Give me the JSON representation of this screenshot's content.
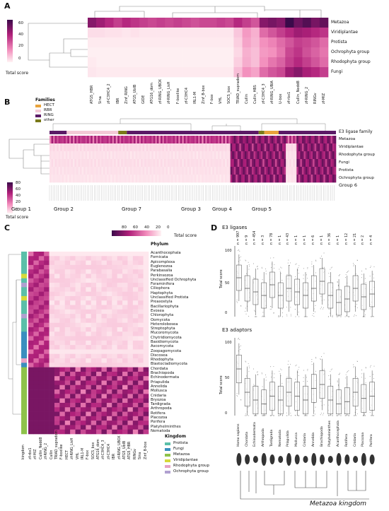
{
  "panels": {
    "a": {
      "letter": "A",
      "colorbar_ticks": [
        "60",
        "40",
        "20",
        "0"
      ],
      "colorbar_label": "Total score",
      "rows": [
        "Metazoa",
        "Viridiplantae",
        "Protista",
        "Ochrophyta group",
        "Rhodophyta group",
        "Fungi"
      ],
      "columns": [
        "ATG5_HBR",
        "Sina",
        "zf-C3HC4_2",
        "IBR",
        "Zinf_RING",
        "ATG5_UbIB",
        "GIDE",
        "ATG16_dom",
        "zf-RING_UBOX",
        "zf-RING_LisH",
        "F-boxlike",
        "zf-C3HC4",
        "IRL1-M",
        "Zinf_B-box",
        "F-box",
        "VHL",
        "SOCS_box",
        "TRIAD_supradom",
        "Cullin",
        "Cullin_HBS",
        "zf-C3HC4_3",
        "zf-RING_UBIA",
        "U-box",
        "zf-rbx1",
        "Cullin_Nedd8",
        "zf-RING_2",
        "RINGv",
        "zf-MIZ"
      ]
    },
    "b": {
      "letter": "B",
      "legend_title": "Families",
      "families": [
        {
          "name": "HECT",
          "color": "#e8a33d"
        },
        {
          "name": "RBR",
          "color": "#f3c9d6"
        },
        {
          "name": "RING",
          "color": "#5b1a66"
        },
        {
          "name": "other",
          "color": "#7a7a1a"
        }
      ],
      "colorbar_ticks": [
        "80",
        "60",
        "40",
        "20",
        "0"
      ],
      "colorbar_label": "Total score",
      "bar_label": "E3 ligase family",
      "rows": [
        "Metazoa",
        "Viridiplantae",
        "Rhodophyta group",
        "Fungi",
        "Protista",
        "Ochrophyta group"
      ],
      "group6": "Group 6",
      "groups": [
        "Group 1",
        "Group 2",
        "Group 7",
        "Group 3",
        "Group 4",
        "Group 5"
      ]
    },
    "c": {
      "letter": "C",
      "colorbar_ticks": [
        "80",
        "60",
        "40",
        "20",
        "0"
      ],
      "colorbar_label": "Total score",
      "phylum_title": "Phylum",
      "phyla": [
        "Acanthocephala",
        "Fornicata",
        "Apicomplexa",
        "Euglenozoa",
        "Parabasalia",
        "Perkinsozoa",
        "Unclassified Ochrophyta",
        "Foraminifera",
        "Ciliophora",
        "Haptophyta",
        "Unclassified Protista",
        "Preaxostyla",
        "Bacillariophyta",
        "Evosea",
        "Chlorophyta",
        "Oomycota",
        "Heterolobosea",
        "Streptophyta",
        "Mucoromycota",
        "Chytridiomycota",
        "Basidiomycota",
        "Ascomycota",
        "Zoopagomycota",
        "Discosea",
        "Rhodophyta",
        "Blastocladiomycota",
        "Chordata",
        "Brachiopoda",
        "Echinodermata",
        "Priapulida",
        "Annelida",
        "Mollusca",
        "Cnidaria",
        "Bryozoa",
        "Tardigrada",
        "Arthropoda",
        "Rotifera",
        "Placozoa",
        "Porifera",
        "Platyhelminthes",
        "Nematoda"
      ],
      "columns": [
        "kingdom",
        "zf-rbx1",
        "zf-MIZ",
        "Cullin_Nedd8",
        "zf-RING_2",
        "Cullin",
        "TRIAD_supradom",
        "F-boxlike",
        "HECT",
        "zf-RING_LisH",
        "VHL",
        "IRL1-M",
        "F-box",
        "SOCS_box",
        "ATG16_dom",
        "zf-C3HC4_3",
        "zf-C3HC4",
        "IBR",
        "zf-RING_UBOX",
        "ATG5_UbIB",
        "ATG5_HBR",
        "RINGv",
        "Sina",
        "Zinf_B-box"
      ],
      "kingdoms_title": "Kingdom",
      "kingdoms": [
        {
          "name": "Protista",
          "color": "#5bbfa9"
        },
        {
          "name": "Fungi",
          "color": "#3a8fbf"
        },
        {
          "name": "Metazoa",
          "color": "#8ec24a"
        },
        {
          "name": "Viridiplantae",
          "color": "#d6d93a"
        },
        {
          "name": "Rhodophyta group",
          "color": "#e6a1c5"
        },
        {
          "name": "Ochrophyta group",
          "color": "#b0a0d0"
        }
      ]
    },
    "d": {
      "letter": "D",
      "ligases_title": "E3 ligases",
      "adaptors_title": "E3 adaptors",
      "ylabel": "Total score",
      "yticks": [
        "100",
        "50",
        "0"
      ],
      "species": [
        "Homo sapiens",
        "Chordata",
        "Echinodermata",
        "Arthropoda",
        "Tardigrada",
        "Nematoda",
        "Priapulida",
        "Mollusca",
        "Cnidaria",
        "Annelida",
        "Brachiopoda",
        "Platyhelminthes",
        "Acanthocephala",
        "Rotifera",
        "Cnidaria",
        "Placozoa",
        "Porifera"
      ],
      "counts": [
        "n = 997",
        "n = 9",
        "n = 454",
        "n = 3",
        "n = 78",
        "n = 1",
        "n = 43",
        "n = 1",
        "n = 1",
        "n = 6",
        "n = 1",
        "n = 36",
        "n = 1",
        "n = 12",
        "n = 21",
        "n = 2",
        "n = 4"
      ],
      "footer": "Metazoa kingdom"
    }
  },
  "chart_data": [
    {
      "type": "heatmap",
      "title": "",
      "ylabel": "",
      "xlabel": "",
      "colorbar_range": [
        0,
        70
      ],
      "rows": [
        "Metazoa",
        "Viridiplantae",
        "Protista",
        "Ochrophyta group",
        "Rhodophyta group",
        "Fungi"
      ],
      "columns": [
        "ATG5_HBR",
        "Sina",
        "zf-C3HC4_2",
        "IBR",
        "Zinf_RING",
        "ATG5_UbIB",
        "GIDE",
        "ATG16_dom",
        "zf-RING_UBOX",
        "zf-RING_LisH",
        "F-boxlike",
        "zf-C3HC4",
        "IRL1-M",
        "Zinf_B-box",
        "F-box",
        "VHL",
        "SOCS_box",
        "TRIAD_supradom",
        "Cullin",
        "Cullin_HBS",
        "zf-C3HC4_3",
        "zf-RING_UBIA",
        "U-box",
        "zf-rbx1",
        "Cullin_Nedd8",
        "zf-RING_2",
        "RINGv",
        "zf-MIZ"
      ],
      "values": [
        [
          55,
          50,
          45,
          40,
          45,
          42,
          40,
          38,
          40,
          38,
          40,
          38,
          36,
          38,
          38,
          40,
          38,
          45,
          40,
          35,
          55,
          58,
          55,
          70,
          60,
          65,
          58,
          62
        ],
        [
          5,
          5,
          4,
          4,
          3,
          4,
          3,
          3,
          3,
          3,
          3,
          3,
          3,
          3,
          3,
          3,
          3,
          10,
          20,
          15,
          30,
          35,
          40,
          45,
          50,
          48,
          45,
          42
        ],
        [
          2,
          2,
          2,
          2,
          2,
          2,
          2,
          2,
          2,
          2,
          2,
          2,
          2,
          2,
          2,
          2,
          2,
          8,
          18,
          14,
          22,
          25,
          30,
          35,
          40,
          38,
          35,
          30
        ],
        [
          1,
          1,
          1,
          1,
          1,
          1,
          1,
          1,
          1,
          1,
          1,
          1,
          1,
          1,
          1,
          1,
          1,
          6,
          15,
          12,
          20,
          22,
          28,
          38,
          42,
          36,
          32,
          28
        ],
        [
          2,
          1,
          1,
          1,
          1,
          1,
          1,
          1,
          1,
          1,
          1,
          1,
          1,
          1,
          1,
          1,
          1,
          8,
          16,
          12,
          22,
          28,
          32,
          40,
          45,
          40,
          35,
          30
        ],
        [
          3,
          2,
          2,
          2,
          2,
          2,
          2,
          2,
          2,
          2,
          2,
          2,
          2,
          2,
          2,
          2,
          2,
          12,
          22,
          18,
          30,
          35,
          38,
          50,
          55,
          48,
          45,
          40
        ]
      ]
    },
    {
      "type": "heatmap",
      "colorbar_range": [
        0,
        85
      ],
      "rows": [
        "Metazoa",
        "Viridiplantae",
        "Rhodophyta group",
        "Fungi",
        "Protista",
        "Ochrophyta group"
      ],
      "row_levels": [
        60,
        8,
        6,
        7,
        6,
        5
      ],
      "hot_columns": [
        "Group 3",
        "Group 4",
        "Group 5"
      ]
    },
    {
      "type": "heatmap",
      "colorbar_range": [
        0,
        85
      ]
    },
    {
      "type": "box",
      "series": [
        {
          "values": [
            55,
            40,
            35,
            30,
            45,
            30,
            40,
            35,
            30,
            40,
            50,
            30,
            20,
            25,
            40,
            28,
            32
          ]
        },
        {
          "values": [
            60,
            30,
            20,
            15,
            25,
            20,
            30,
            25,
            20,
            35,
            40,
            20,
            15,
            18,
            30,
            22,
            25
          ]
        }
      ],
      "ylim": [
        0,
        100
      ]
    }
  ]
}
